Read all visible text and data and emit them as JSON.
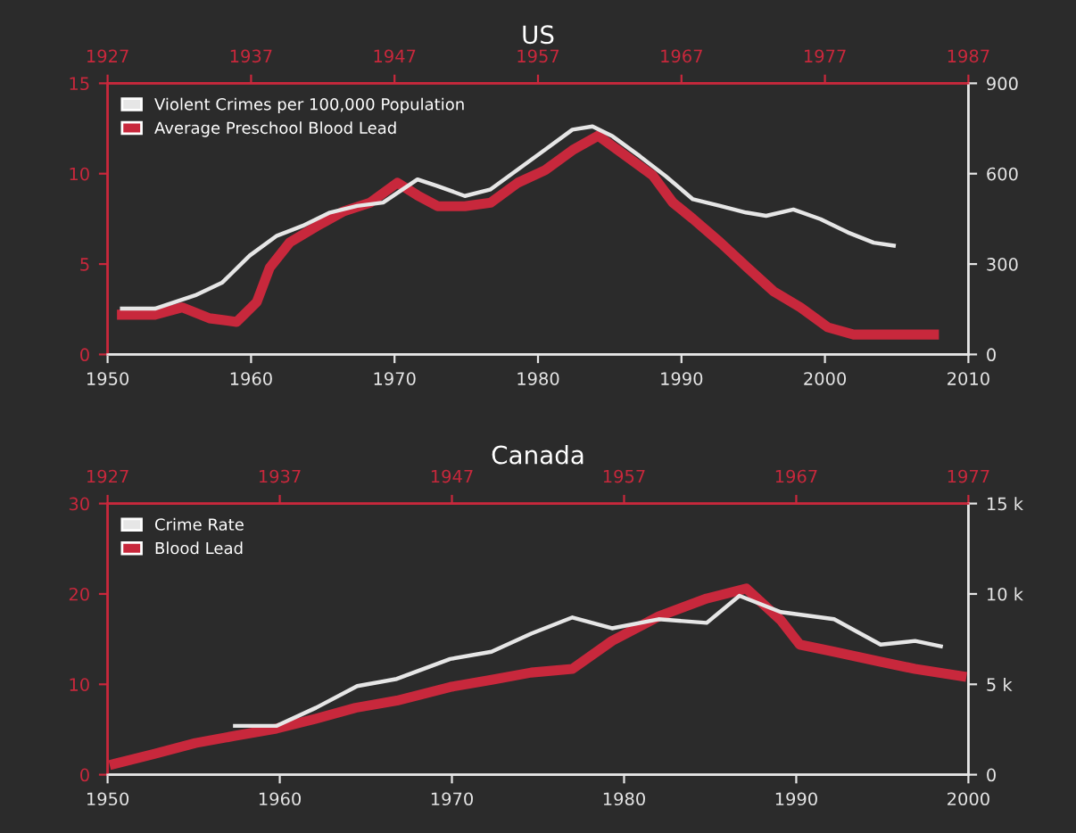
{
  "chart_data": [
    {
      "type": "line",
      "title": "US",
      "legend": "top left",
      "xlim": [
        1950,
        2010
      ],
      "xticks": [
        1950,
        1960,
        1970,
        1980,
        1990,
        2000,
        2010
      ],
      "x2lim": [
        1927,
        1987
      ],
      "x2ticks": [
        1927,
        1937,
        1947,
        1957,
        1967,
        1977,
        1987
      ],
      "ylim": [
        0,
        15
      ],
      "yticks": [
        0,
        5,
        10,
        15
      ],
      "y2lim": [
        0,
        900
      ],
      "y2ticks": [
        0,
        300,
        600,
        900
      ],
      "series": [
        {
          "name": "Violent Crimes per 100,000 Population",
          "color": "#e6e6e6",
          "axis": "y2",
          "x": [
            1951.0,
            1953.3,
            1956.1,
            1958.0,
            1959.9,
            1961.8,
            1963.6,
            1965.5,
            1967.4,
            1969.2,
            1971.6,
            1973.0,
            1974.9,
            1976.7,
            1978.6,
            1980.5,
            1982.4,
            1983.8,
            1985.2,
            1987.1,
            1988.9,
            1990.8,
            1992.7,
            1994.5,
            1995.9,
            1997.8,
            1999.7,
            2001.6,
            2003.4,
            2004.8
          ],
          "values": [
            152,
            152,
            196,
            239,
            328,
            394,
            427,
            471,
            493,
            504,
            581,
            559,
            526,
            548,
            614,
            680,
            746,
            757,
            724,
            658,
            592,
            515,
            493,
            471,
            460,
            481,
            449,
            405,
            371,
            361
          ]
        },
        {
          "name": "Average Preschool Blood Lead",
          "color": "#c8283c",
          "axis": "x2",
          "x": [
            1928.0,
            1930.3,
            1932.2,
            1934.1,
            1936.0,
            1937.4,
            1938.3,
            1939.7,
            1941.6,
            1943.4,
            1945.3,
            1947.2,
            1948.6,
            1950.0,
            1951.9,
            1953.7,
            1955.6,
            1957.5,
            1959.4,
            1961.2,
            1963.1,
            1965.0,
            1966.4,
            1967.8,
            1969.7,
            1971.6,
            1973.4,
            1975.3,
            1977.2,
            1979.0,
            1981.8,
            1984.6
          ],
          "values": [
            2.2,
            2.2,
            2.6,
            2.0,
            1.8,
            2.9,
            4.8,
            6.2,
            7.1,
            7.9,
            8.4,
            9.5,
            8.8,
            8.2,
            8.2,
            8.4,
            9.5,
            10.2,
            11.3,
            12.1,
            11.0,
            9.9,
            8.4,
            7.5,
            6.2,
            4.8,
            3.5,
            2.6,
            1.5,
            1.1,
            1.1,
            1.1
          ]
        }
      ]
    },
    {
      "type": "line",
      "title": "Canada",
      "legend": "top left",
      "xlim": [
        1950,
        2000
      ],
      "xticks": [
        1950,
        1960,
        1970,
        1980,
        1990,
        2000
      ],
      "x2lim": [
        1927,
        1977
      ],
      "x2ticks": [
        1927,
        1937,
        1947,
        1957,
        1967,
        1977
      ],
      "ylim": [
        0,
        30
      ],
      "yticks": [
        0,
        10,
        20,
        30
      ],
      "y2lim": [
        0,
        15000
      ],
      "y2ticks": [
        0,
        {
          "value": 5000,
          "label": "5 k"
        },
        {
          "value": 10000,
          "label": "10 k"
        },
        {
          "value": 15000,
          "label": "15 k"
        }
      ],
      "series": [
        {
          "name": "Crime Rate",
          "color": "#e6e6e6",
          "axis": "y2",
          "x": [
            1957.4,
            1959.8,
            1962.1,
            1964.5,
            1966.8,
            1969.9,
            1972.3,
            1974.6,
            1977.0,
            1979.3,
            1982.0,
            1984.8,
            1986.7,
            1989.1,
            1992.2,
            1994.9,
            1996.9,
            1998.4
          ],
          "values": [
            2700,
            2700,
            3700,
            4900,
            5300,
            6400,
            6800,
            7800,
            8700,
            8100,
            8600,
            8400,
            9900,
            9000,
            8600,
            7200,
            7400,
            7100
          ]
        },
        {
          "name": "Blood Lead",
          "color": "#c8283c",
          "axis": "x2",
          "x": [
            1927.4,
            1929.7,
            1932.1,
            1934.4,
            1936.8,
            1939.1,
            1941.4,
            1943.8,
            1946.9,
            1949.3,
            1951.6,
            1954.0,
            1956.3,
            1959.0,
            1961.8,
            1964.1,
            1966.1,
            1967.2,
            1969.2,
            1971.9,
            1973.9,
            1976.6
          ],
          "values": [
            1.2,
            2.3,
            3.5,
            4.3,
            5.1,
            6.2,
            7.4,
            8.2,
            9.7,
            10.5,
            11.3,
            11.7,
            14.8,
            17.5,
            19.5,
            20.6,
            17.1,
            14.4,
            13.6,
            12.5,
            11.7,
            10.9
          ]
        }
      ]
    }
  ]
}
